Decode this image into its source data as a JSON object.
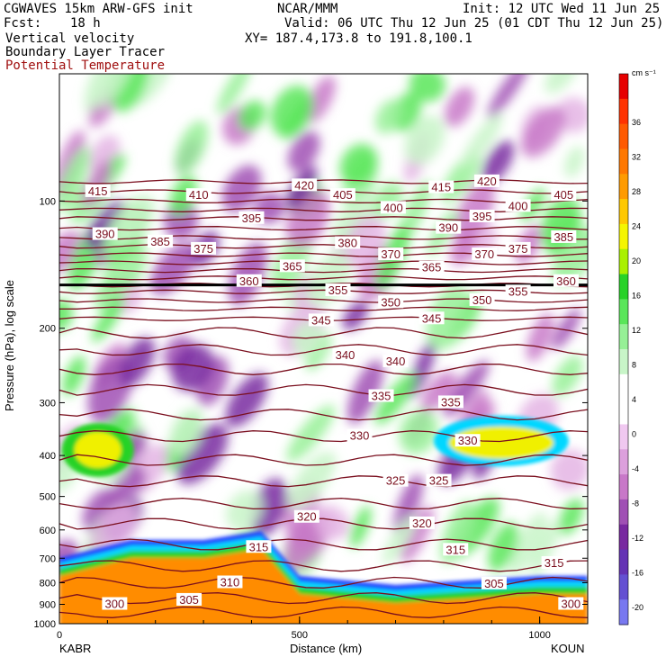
{
  "header": {
    "model": "CGWAVES 15km ARW-GFS init",
    "fcst_label": "Fcst:",
    "fcst_value": "18 h",
    "center": "NCAR/MMM",
    "init": "Init: 12 UTC Wed 11 Jun 25",
    "valid": "Valid: 06 UTC Thu 12 Jun 25 (01 CDT Thu 12 Jun 25)",
    "field1": "Vertical velocity",
    "field2": "Boundary Layer Tracer",
    "field3": "Potential Temperature",
    "xy": "XY= 187.4,173.8 to 191.8,100.1"
  },
  "colors": {
    "theta_contour": "#7a0f1e",
    "tracer_orange": "#ff8c00",
    "tracer_yellow": "#f0f000",
    "tracer_green": "#28d228",
    "tracer_cyan": "#00d7ff",
    "tracer_blue": "#1e3cff"
  },
  "chart_data": {
    "type": "heatmap",
    "xlabel": "Distance (km)",
    "ylabel": "Pressure (hPa), log scale",
    "x_ticks": [
      "0",
      "500",
      "1000"
    ],
    "xlim": [
      0,
      1100
    ],
    "y_ticks": [
      "100",
      "200",
      "300",
      "400",
      "500",
      "600",
      "700",
      "800",
      "900",
      "1000"
    ],
    "y_tick_values": [
      100,
      200,
      300,
      400,
      500,
      600,
      700,
      800,
      900,
      1000
    ],
    "ylim": [
      1000,
      50
    ],
    "y_scale": "log",
    "endpoint_left": "KABR",
    "endpoint_right": "KOUN",
    "colorbar": {
      "units": "cm s⁻¹",
      "labels": [
        "36",
        "32",
        "28",
        "24",
        "20",
        "16",
        "12",
        "8",
        "4",
        "0",
        "-4",
        "-8",
        "-12",
        "-16",
        "-20"
      ],
      "colors": [
        "#e60000",
        "#ff3200",
        "#ff5a00",
        "#ff7800",
        "#ff9b00",
        "#ffc800",
        "#f5f500",
        "#aaf000",
        "#28d228",
        "#5ae65a",
        "#96f096",
        "#c8f5c8",
        "#ffffff",
        "#ffffff",
        "#f0c8f0",
        "#dca0dc",
        "#c878c8",
        "#a050b4",
        "#7828a0",
        "#6432b4",
        "#6450d2",
        "#7878f0"
      ]
    },
    "theta_labels": [
      {
        "text": "415",
        "x": 80,
        "p": 95
      },
      {
        "text": "410",
        "x": 290,
        "p": 97
      },
      {
        "text": "420",
        "x": 510,
        "p": 92
      },
      {
        "text": "405",
        "x": 590,
        "p": 97
      },
      {
        "text": "415",
        "x": 795,
        "p": 93
      },
      {
        "text": "420",
        "x": 890,
        "p": 90
      },
      {
        "text": "400",
        "x": 955,
        "p": 103
      },
      {
        "text": "405",
        "x": 1050,
        "p": 97
      },
      {
        "text": "390",
        "x": 95,
        "p": 120
      },
      {
        "text": "385",
        "x": 210,
        "p": 125
      },
      {
        "text": "375",
        "x": 300,
        "p": 130
      },
      {
        "text": "395",
        "x": 400,
        "p": 110
      },
      {
        "text": "400",
        "x": 695,
        "p": 104
      },
      {
        "text": "390",
        "x": 810,
        "p": 116
      },
      {
        "text": "395",
        "x": 880,
        "p": 109
      },
      {
        "text": "385",
        "x": 1050,
        "p": 122
      },
      {
        "text": "380",
        "x": 600,
        "p": 126
      },
      {
        "text": "370",
        "x": 690,
        "p": 134
      },
      {
        "text": "370",
        "x": 885,
        "p": 134
      },
      {
        "text": "375",
        "x": 955,
        "p": 130
      },
      {
        "text": "360",
        "x": 395,
        "p": 155
      },
      {
        "text": "365",
        "x": 485,
        "p": 143
      },
      {
        "text": "365",
        "x": 775,
        "p": 144
      },
      {
        "text": "355",
        "x": 580,
        "p": 163
      },
      {
        "text": "350",
        "x": 690,
        "p": 174
      },
      {
        "text": "350",
        "x": 880,
        "p": 172
      },
      {
        "text": "355",
        "x": 955,
        "p": 164
      },
      {
        "text": "360",
        "x": 1055,
        "p": 155
      },
      {
        "text": "345",
        "x": 545,
        "p": 192
      },
      {
        "text": "345",
        "x": 775,
        "p": 190
      },
      {
        "text": "340",
        "x": 595,
        "p": 232
      },
      {
        "text": "340",
        "x": 700,
        "p": 240
      },
      {
        "text": "335",
        "x": 670,
        "p": 290
      },
      {
        "text": "335",
        "x": 815,
        "p": 300
      },
      {
        "text": "330",
        "x": 625,
        "p": 360
      },
      {
        "text": "330",
        "x": 850,
        "p": 370
      },
      {
        "text": "325",
        "x": 700,
        "p": 460
      },
      {
        "text": "325",
        "x": 790,
        "p": 460
      },
      {
        "text": "320",
        "x": 515,
        "p": 560
      },
      {
        "text": "320",
        "x": 755,
        "p": 580
      },
      {
        "text": "315",
        "x": 415,
        "p": 660
      },
      {
        "text": "315",
        "x": 825,
        "p": 670
      },
      {
        "text": "315",
        "x": 1030,
        "p": 720
      },
      {
        "text": "310",
        "x": 355,
        "p": 800
      },
      {
        "text": "305",
        "x": 270,
        "p": 880
      },
      {
        "text": "305",
        "x": 905,
        "p": 805
      },
      {
        "text": "300",
        "x": 115,
        "p": 900
      },
      {
        "text": "300",
        "x": 1065,
        "p": 900
      }
    ]
  }
}
